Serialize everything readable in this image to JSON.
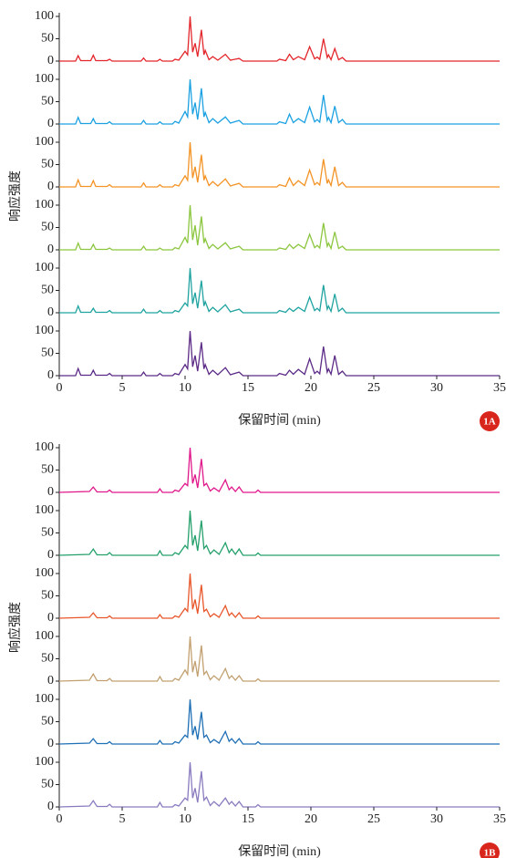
{
  "chart_data": [
    {
      "type": "line",
      "xlabel": "保留时间 (min)",
      "ylabel": "响应强度",
      "annotation": "1A",
      "xlim": [
        0,
        35
      ],
      "xticks": [
        0,
        5,
        10,
        15,
        20,
        25,
        30,
        35
      ],
      "ylim": [
        0,
        100
      ],
      "yticks": [
        0,
        50,
        100
      ],
      "x": [
        0,
        1.3,
        1.5,
        1.7,
        2.5,
        2.7,
        2.9,
        3.8,
        4,
        4.2,
        6.5,
        6.7,
        6.9,
        7.8,
        8,
        8.2,
        9,
        9.2,
        9.5,
        10,
        10.2,
        10.4,
        10.6,
        10.8,
        11,
        11.3,
        11.5,
        11.6,
        11.9,
        12.2,
        12.6,
        13.2,
        13.6,
        14.3,
        14.6,
        17.3,
        17.5,
        18,
        18.3,
        18.6,
        19,
        19.5,
        19.9,
        20.3,
        20.5,
        20.7,
        21,
        21.3,
        21.4,
        21.6,
        21.9,
        22.2,
        22.5,
        22.8,
        35
      ],
      "series": [
        {
          "color": "#e3262b",
          "values": [
            0,
            0,
            12,
            1,
            1,
            13,
            1,
            1,
            4,
            0,
            0,
            7,
            0,
            0,
            4,
            0,
            0,
            4,
            2,
            22,
            14,
            100,
            20,
            40,
            10,
            70,
            14,
            24,
            3,
            10,
            2,
            15,
            2,
            6,
            0,
            0,
            4,
            1,
            15,
            3,
            10,
            3,
            32,
            5,
            9,
            4,
            50,
            8,
            14,
            3,
            28,
            3,
            8,
            0,
            0
          ]
        },
        {
          "color": "#1ba1e2",
          "values": [
            0,
            0,
            15,
            1,
            1,
            12,
            1,
            1,
            5,
            0,
            0,
            8,
            0,
            0,
            5,
            0,
            0,
            6,
            2,
            28,
            16,
            100,
            22,
            48,
            10,
            80,
            16,
            26,
            3,
            12,
            2,
            16,
            2,
            8,
            0,
            0,
            5,
            1,
            22,
            3,
            12,
            3,
            38,
            5,
            10,
            4,
            65,
            8,
            15,
            3,
            40,
            3,
            10,
            0,
            0
          ]
        },
        {
          "color": "#f39325",
          "values": [
            0,
            0,
            16,
            1,
            1,
            14,
            1,
            1,
            5,
            0,
            0,
            9,
            0,
            0,
            5,
            0,
            0,
            5,
            2,
            25,
            15,
            100,
            20,
            45,
            10,
            72,
            15,
            25,
            3,
            12,
            2,
            18,
            2,
            8,
            0,
            0,
            5,
            1,
            20,
            3,
            14,
            3,
            38,
            5,
            10,
            4,
            62,
            8,
            16,
            3,
            45,
            3,
            10,
            0,
            0
          ]
        },
        {
          "color": "#8cc63f",
          "values": [
            0,
            0,
            15,
            1,
            1,
            12,
            1,
            1,
            4,
            0,
            0,
            8,
            0,
            0,
            4,
            0,
            0,
            5,
            2,
            28,
            15,
            100,
            22,
            55,
            10,
            75,
            15,
            25,
            3,
            12,
            2,
            16,
            2,
            8,
            0,
            0,
            4,
            1,
            12,
            3,
            12,
            3,
            35,
            5,
            10,
            4,
            60,
            8,
            15,
            3,
            40,
            3,
            8,
            0,
            0
          ]
        },
        {
          "color": "#1fa3a0",
          "values": [
            0,
            0,
            15,
            1,
            1,
            10,
            1,
            1,
            5,
            0,
            0,
            8,
            0,
            0,
            5,
            0,
            0,
            5,
            2,
            22,
            15,
            100,
            20,
            45,
            10,
            72,
            15,
            25,
            3,
            12,
            2,
            18,
            2,
            8,
            0,
            0,
            5,
            1,
            10,
            3,
            12,
            3,
            35,
            5,
            10,
            4,
            62,
            8,
            15,
            3,
            42,
            3,
            10,
            0,
            0
          ]
        },
        {
          "color": "#5b2a86",
          "values": [
            0,
            0,
            16,
            1,
            1,
            12,
            1,
            1,
            5,
            0,
            0,
            8,
            0,
            0,
            5,
            0,
            0,
            5,
            2,
            25,
            15,
            100,
            20,
            45,
            10,
            75,
            15,
            25,
            3,
            12,
            2,
            18,
            2,
            8,
            0,
            0,
            5,
            1,
            12,
            3,
            14,
            3,
            38,
            5,
            10,
            4,
            65,
            8,
            15,
            3,
            45,
            3,
            10,
            0,
            0
          ]
        }
      ]
    },
    {
      "type": "line",
      "xlabel": "保留时间 (min)",
      "ylabel": "响应强度",
      "annotation": "1B",
      "xlim": [
        0,
        35
      ],
      "xticks": [
        0,
        5,
        10,
        15,
        20,
        25,
        30,
        35
      ],
      "ylim": [
        0,
        100
      ],
      "yticks": [
        0,
        50,
        100
      ],
      "x": [
        0,
        2.4,
        2.7,
        3,
        3.8,
        4,
        4.2,
        7.8,
        8,
        8.2,
        9,
        9.2,
        9.5,
        10,
        10.2,
        10.4,
        10.6,
        10.8,
        11,
        11.3,
        11.5,
        11.7,
        12,
        12.3,
        12.7,
        13.2,
        13.5,
        13.7,
        14,
        14.3,
        14.6,
        15.6,
        15.8,
        16,
        35
      ],
      "series": [
        {
          "color": "#e0178a",
          "values": [
            0,
            2,
            12,
            1,
            1,
            5,
            0,
            0,
            8,
            0,
            0,
            5,
            2,
            20,
            15,
            100,
            20,
            40,
            10,
            75,
            15,
            20,
            3,
            10,
            2,
            28,
            6,
            12,
            2,
            12,
            0,
            0,
            5,
            0,
            0
          ]
        },
        {
          "color": "#24a06b",
          "values": [
            0,
            2,
            14,
            1,
            1,
            6,
            0,
            0,
            10,
            0,
            0,
            6,
            2,
            22,
            15,
            100,
            22,
            45,
            10,
            78,
            15,
            22,
            3,
            12,
            2,
            28,
            6,
            14,
            2,
            14,
            0,
            0,
            5,
            0,
            0
          ]
        },
        {
          "color": "#e8562a",
          "values": [
            0,
            2,
            12,
            1,
            1,
            5,
            0,
            0,
            8,
            0,
            0,
            5,
            2,
            22,
            15,
            100,
            20,
            42,
            10,
            75,
            15,
            20,
            3,
            10,
            2,
            28,
            6,
            12,
            2,
            12,
            0,
            0,
            5,
            0,
            0
          ]
        },
        {
          "color": "#c2a070",
          "values": [
            0,
            2,
            16,
            1,
            1,
            6,
            0,
            0,
            10,
            0,
            0,
            6,
            2,
            25,
            15,
            100,
            20,
            45,
            10,
            80,
            15,
            22,
            3,
            12,
            2,
            28,
            6,
            12,
            2,
            12,
            0,
            0,
            5,
            0,
            0
          ]
        },
        {
          "color": "#1f6fb5",
          "values": [
            0,
            2,
            12,
            1,
            1,
            5,
            0,
            0,
            8,
            0,
            0,
            5,
            2,
            20,
            15,
            100,
            20,
            40,
            10,
            72,
            15,
            20,
            3,
            10,
            2,
            28,
            6,
            12,
            2,
            12,
            0,
            0,
            5,
            0,
            0
          ]
        },
        {
          "color": "#8a7bbf",
          "values": [
            0,
            2,
            14,
            1,
            1,
            6,
            0,
            0,
            10,
            0,
            0,
            5,
            2,
            20,
            15,
            100,
            20,
            42,
            10,
            80,
            15,
            22,
            3,
            12,
            2,
            20,
            6,
            12,
            2,
            12,
            0,
            0,
            5,
            0,
            0
          ]
        }
      ]
    }
  ]
}
